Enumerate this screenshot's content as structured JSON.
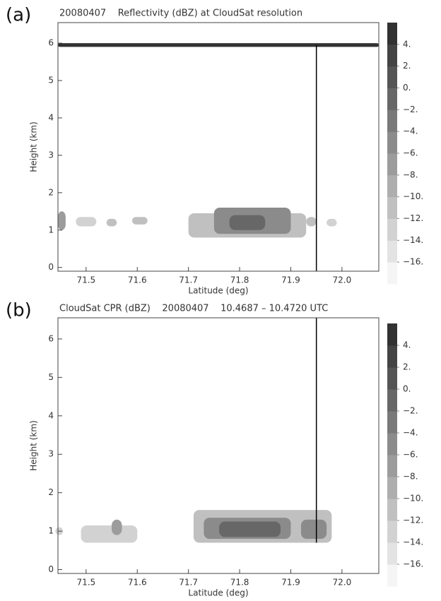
{
  "chart_data": [
    {
      "type": "contour",
      "panel_label": "(a)",
      "title": "20080407    Reflectivity (dBZ) at CloudSat resolution",
      "xlabel": "Latitude (deg)",
      "ylabel": "Height (km)",
      "xlim": [
        71.445,
        72.072
      ],
      "ylim": [
        -0.1,
        6.55
      ],
      "xticks": [
        71.5,
        71.6,
        71.7,
        71.8,
        71.9,
        {
          "value": 72.0,
          "label": "72.0"
        }
      ],
      "yticks": [
        0,
        1,
        2,
        3,
        4,
        5,
        6
      ],
      "colorbar": {
        "lim": [
          -18,
          6
        ],
        "step": 2,
        "ticks": [
          {
            "value": 4,
            "label": "4."
          },
          {
            "value": 2,
            "label": "2."
          },
          {
            "value": 0,
            "label": "0."
          },
          {
            "value": -2,
            "label": "−2."
          },
          {
            "value": -4,
            "label": "−4."
          },
          {
            "value": -6,
            "label": "−6."
          },
          {
            "value": -8,
            "label": "−8."
          },
          {
            "value": -10,
            "label": "−10."
          },
          {
            "value": -12,
            "label": "−12."
          },
          {
            "value": -14,
            "label": "−14."
          },
          {
            "value": -16,
            "label": "−16."
          }
        ]
      },
      "cells": [
        {
          "x": [
            71.445,
            72.072
          ],
          "y": [
            5.9,
            6.0
          ],
          "value": 4
        },
        {
          "x": [
            71.445,
            71.46
          ],
          "y": [
            1.0,
            1.5
          ],
          "value": -8
        },
        {
          "x": [
            71.48,
            71.52
          ],
          "y": [
            1.1,
            1.35
          ],
          "value": -14
        },
        {
          "x": [
            71.54,
            71.56
          ],
          "y": [
            1.1,
            1.3
          ],
          "value": -12
        },
        {
          "x": [
            71.59,
            71.62
          ],
          "y": [
            1.15,
            1.35
          ],
          "value": -12
        },
        {
          "x": [
            71.7,
            71.93
          ],
          "y": [
            0.8,
            1.45
          ],
          "value": -12
        },
        {
          "x": [
            71.75,
            71.9
          ],
          "y": [
            0.9,
            1.6
          ],
          "value": -6
        },
        {
          "x": [
            71.78,
            71.85
          ],
          "y": [
            1.0,
            1.4
          ],
          "value": -2
        },
        {
          "x": [
            71.93,
            71.95
          ],
          "y": [
            1.1,
            1.35
          ],
          "value": -12
        },
        {
          "x": [
            71.97,
            71.99
          ],
          "y": [
            1.1,
            1.3
          ],
          "value": -14
        }
      ],
      "marker": {
        "x": 71.95,
        "y": [
          -0.1,
          5.95
        ]
      }
    },
    {
      "type": "contour",
      "panel_label": "(b)",
      "title": "CloudSat CPR (dBZ)    20080407    10.4687 – 10.4720 UTC",
      "xlabel": "Latitude (deg)",
      "ylabel": "Height (km)",
      "xlim": [
        71.445,
        72.072
      ],
      "ylim": [
        -0.1,
        6.55
      ],
      "xticks": [
        71.5,
        71.6,
        71.7,
        71.8,
        71.9,
        {
          "value": 72.0,
          "label": "72.0"
        }
      ],
      "yticks": [
        0,
        1,
        2,
        3,
        4,
        5,
        6
      ],
      "colorbar": {
        "lim": [
          -18,
          6
        ],
        "step": 2,
        "ticks": [
          {
            "value": 4,
            "label": "4."
          },
          {
            "value": 2,
            "label": "2."
          },
          {
            "value": 0,
            "label": "0."
          },
          {
            "value": -2,
            "label": "−2."
          },
          {
            "value": -4,
            "label": "−4."
          },
          {
            "value": -6,
            "label": "−6."
          },
          {
            "value": -8,
            "label": "−8."
          },
          {
            "value": -10,
            "label": "−10."
          },
          {
            "value": -12,
            "label": "−12."
          },
          {
            "value": -14,
            "label": "−14."
          },
          {
            "value": -16,
            "label": "−16."
          }
        ]
      },
      "cells": [
        {
          "x": [
            71.44,
            71.455
          ],
          "y": [
            0.9,
            1.1
          ],
          "value": -14
        },
        {
          "x": [
            71.49,
            71.6
          ],
          "y": [
            0.7,
            1.15
          ],
          "value": -14
        },
        {
          "x": [
            71.55,
            71.57
          ],
          "y": [
            0.9,
            1.3
          ],
          "value": -8
        },
        {
          "x": [
            71.71,
            71.98
          ],
          "y": [
            0.7,
            1.55
          ],
          "value": -12
        },
        {
          "x": [
            71.73,
            71.9
          ],
          "y": [
            0.8,
            1.35
          ],
          "value": -6
        },
        {
          "x": [
            71.76,
            71.88
          ],
          "y": [
            0.85,
            1.25
          ],
          "value": -2
        },
        {
          "x": [
            71.92,
            71.97
          ],
          "y": [
            0.8,
            1.3
          ],
          "value": -6
        }
      ],
      "marker": {
        "x": 71.95,
        "y": [
          0.7,
          6.55
        ]
      }
    }
  ]
}
